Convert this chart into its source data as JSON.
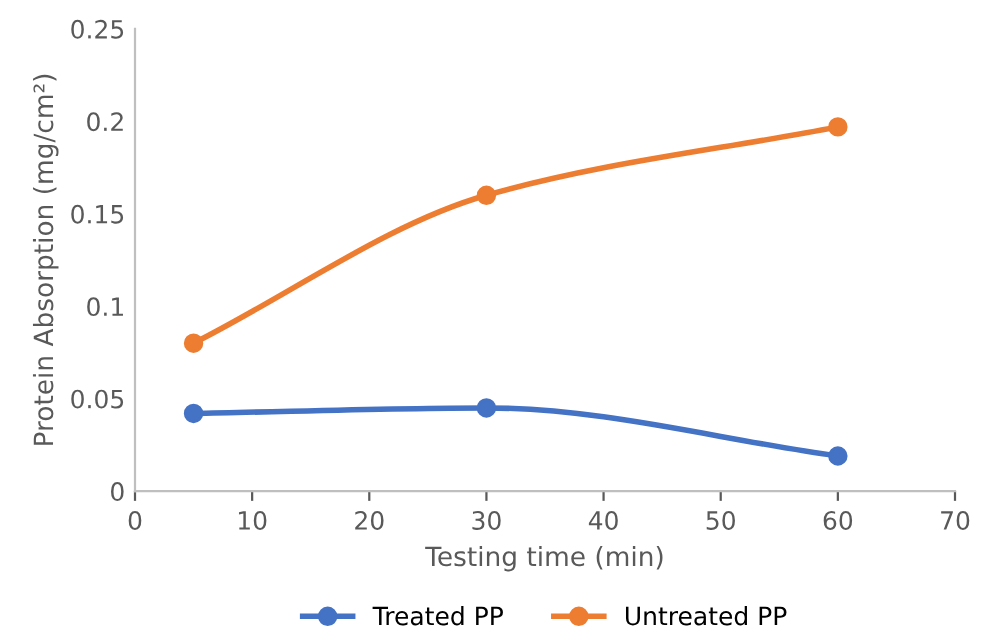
{
  "chart_data": {
    "type": "line",
    "xlabel": "Testing time (min)",
    "ylabel": "Protein Absorption (mg/cm²)",
    "x": [
      5,
      30,
      60
    ],
    "series": [
      {
        "name": "Treated PP",
        "color": "#4472c4",
        "values": [
          0.042,
          0.045,
          0.019
        ]
      },
      {
        "name": "Untreated PP",
        "color": "#ed7d31",
        "values": [
          0.08,
          0.16,
          0.197
        ]
      }
    ],
    "xlim": [
      0,
      70
    ],
    "xticks": [
      0,
      10,
      20,
      30,
      40,
      50,
      60,
      70
    ],
    "ylim": [
      0,
      0.25
    ],
    "yticks": [
      0,
      0.05,
      0.1,
      0.15,
      0.2,
      0.25
    ],
    "grid": false,
    "legend": "bottom",
    "marker": "circle",
    "line_style": "solid"
  }
}
